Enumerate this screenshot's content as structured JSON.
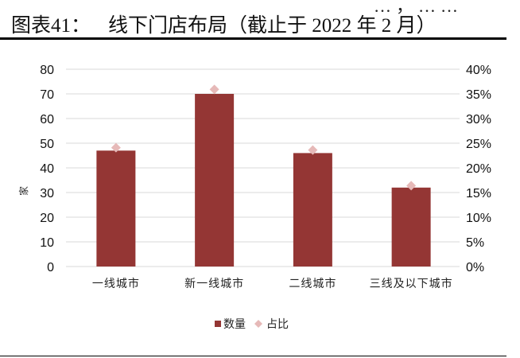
{
  "header": {
    "clipped_text": "…，……",
    "figure_number": "图表41：",
    "figure_title": "线下门店布局（截止于 2022 年 2 月）"
  },
  "colors": {
    "bar": "#943634",
    "marker": "#E6B9B8",
    "grid": "#D9D9D9",
    "rule": "#000000"
  },
  "chart_data": {
    "type": "bar",
    "title": "线下门店布局（截止于 2022 年 2 月）",
    "categories": [
      "一线城市",
      "新一线城市",
      "二线城市",
      "三线及以下城市"
    ],
    "series": [
      {
        "name": "数量",
        "type": "bar",
        "axis": "left",
        "values": [
          47,
          70,
          46,
          32
        ]
      },
      {
        "name": "占比",
        "type": "scatter",
        "axis": "right",
        "marker": "diamond",
        "values": [
          0.241,
          0.359,
          0.236,
          0.164
        ]
      }
    ],
    "xlabel": "",
    "ylabel": "家",
    "ylim": [
      0,
      80
    ],
    "yticks": [
      "0",
      "10",
      "20",
      "30",
      "40",
      "50",
      "60",
      "70",
      "80"
    ],
    "y2lim": [
      0,
      0.4
    ],
    "y2ticks": [
      "0%",
      "5%",
      "10%",
      "15%",
      "20%",
      "25%",
      "30%",
      "35%",
      "40%"
    ],
    "grid": true,
    "legend": {
      "position": "bottom",
      "entries": [
        "数量",
        "占比"
      ]
    }
  }
}
